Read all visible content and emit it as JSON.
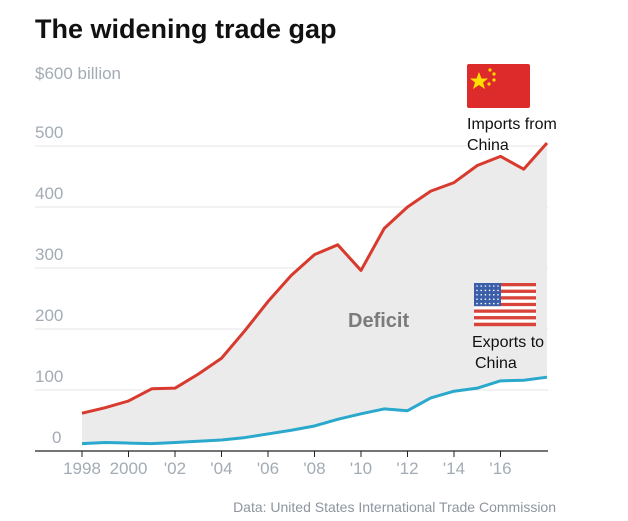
{
  "chart_data": {
    "type": "area",
    "title": "The widening trade gap",
    "ylabel": "",
    "xlabel": "",
    "y_top_label": "$600 billion",
    "ylim": [
      0,
      600
    ],
    "yticks": [
      0,
      100,
      200,
      300,
      400,
      500
    ],
    "ytick_labels": [
      "0",
      "100",
      "200",
      "300",
      "400",
      "500"
    ],
    "xlim": [
      1998,
      2018
    ],
    "xticks": [
      1998,
      2000,
      2002,
      2004,
      2006,
      2008,
      2010,
      2012,
      2014,
      2016
    ],
    "xtick_labels": [
      "1998",
      "2000",
      "'02",
      "'04",
      "'06",
      "'08",
      "'10",
      "'12",
      "'14",
      "'16"
    ],
    "grid": true,
    "x": [
      1998,
      1999,
      2000,
      2001,
      2002,
      2003,
      2004,
      2005,
      2006,
      2007,
      2008,
      2009,
      2010,
      2011,
      2012,
      2013,
      2014,
      2015,
      2016,
      2017,
      2018
    ],
    "series": [
      {
        "name": "Imports from China",
        "color": "#d83a2e",
        "values": [
          62,
          71,
          82,
          102,
          103,
          126,
          152,
          197,
          245,
          288,
          322,
          338,
          296,
          365,
          400,
          426,
          440,
          468,
          483,
          462,
          505
        ]
      },
      {
        "name": "Exports to China",
        "color": "#2aa9cc",
        "values": [
          12,
          14,
          13,
          12,
          14,
          16,
          18,
          22,
          28,
          34,
          41,
          52,
          61,
          69,
          66,
          87,
          98,
          103,
          115,
          116,
          121
        ]
      }
    ],
    "fill_between_label": "Deficit",
    "fill_color": "#ebebeb",
    "annotations": {
      "imports_line1": "Imports from",
      "imports_line2": "China",
      "exports_line1": "Exports to",
      "exports_line2": "China"
    },
    "icons": {
      "imports": "china-flag-icon",
      "exports": "us-flag-icon"
    },
    "source": "Data: United States International Trade Commission"
  }
}
